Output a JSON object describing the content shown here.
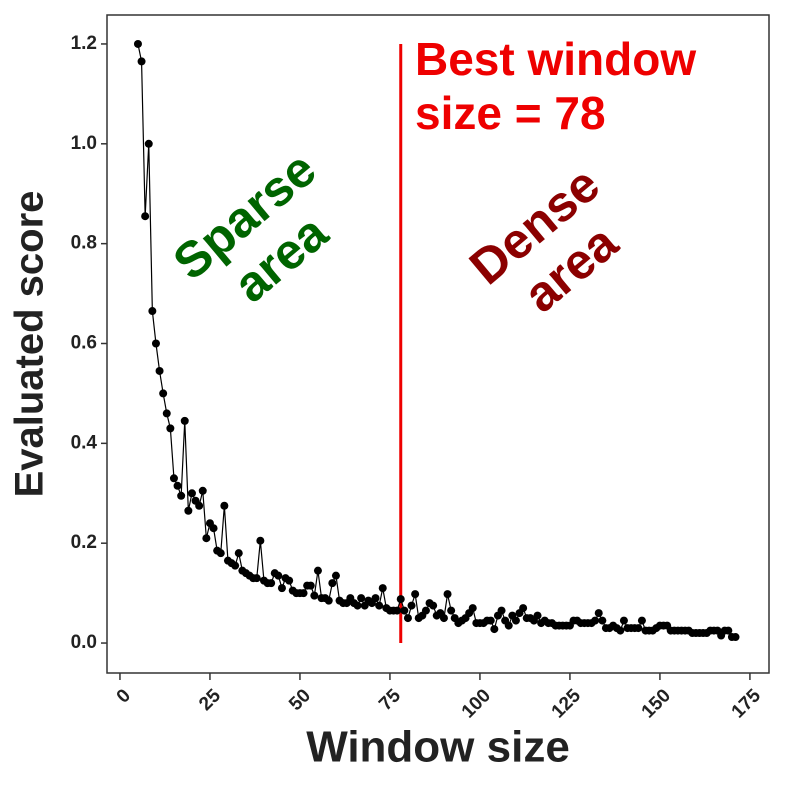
{
  "chart_data": {
    "type": "line",
    "x_label": "Window size",
    "y_label": "Evaluated score",
    "x": [
      5,
      6,
      7,
      8,
      9,
      10,
      11,
      12,
      13,
      14,
      15,
      16,
      17,
      18,
      19,
      20,
      21,
      22,
      23,
      24,
      25,
      26,
      27,
      28,
      29,
      30,
      31,
      32,
      33,
      34,
      35,
      36,
      37,
      38,
      39,
      40,
      41,
      42,
      43,
      44,
      45,
      46,
      47,
      48,
      49,
      50,
      51,
      52,
      53,
      54,
      55,
      56,
      57,
      58,
      59,
      60,
      61,
      62,
      63,
      64,
      65,
      66,
      67,
      68,
      69,
      70,
      71,
      72,
      73,
      74,
      75,
      76,
      77,
      78,
      79,
      80,
      81,
      82,
      83,
      84,
      85,
      86,
      87,
      88,
      89,
      90,
      91,
      92,
      93,
      94,
      95,
      96,
      97,
      98,
      99,
      100,
      101,
      102,
      103,
      104,
      105,
      106,
      107,
      108,
      109,
      110,
      111,
      112,
      113,
      114,
      115,
      116,
      117,
      118,
      119,
      120,
      121,
      122,
      123,
      124,
      125,
      126,
      127,
      128,
      129,
      130,
      131,
      132,
      133,
      134,
      135,
      136,
      137,
      138,
      139,
      140,
      141,
      142,
      143,
      144,
      145,
      146,
      147,
      148,
      149,
      150,
      151,
      152,
      153,
      154,
      155,
      156,
      157,
      158,
      159,
      160,
      161,
      162,
      163,
      164,
      165,
      166,
      167,
      168,
      169,
      170,
      171
    ],
    "series": [
      {
        "name": "score",
        "color": "#000000",
        "values": [
          1.2,
          1.165,
          0.855,
          1.0,
          0.665,
          0.6,
          0.545,
          0.5,
          0.46,
          0.43,
          0.33,
          0.315,
          0.295,
          0.445,
          0.265,
          0.3,
          0.285,
          0.275,
          0.305,
          0.21,
          0.24,
          0.23,
          0.185,
          0.18,
          0.275,
          0.165,
          0.16,
          0.155,
          0.18,
          0.145,
          0.14,
          0.135,
          0.13,
          0.13,
          0.205,
          0.125,
          0.12,
          0.12,
          0.14,
          0.135,
          0.11,
          0.13,
          0.125,
          0.105,
          0.1,
          0.1,
          0.1,
          0.115,
          0.115,
          0.095,
          0.145,
          0.09,
          0.09,
          0.085,
          0.12,
          0.135,
          0.085,
          0.08,
          0.08,
          0.09,
          0.08,
          0.075,
          0.09,
          0.075,
          0.085,
          0.08,
          0.09,
          0.075,
          0.11,
          0.07,
          0.065,
          0.065,
          0.065,
          0.088,
          0.065,
          0.05,
          0.075,
          0.098,
          0.05,
          0.055,
          0.065,
          0.08,
          0.075,
          0.055,
          0.06,
          0.05,
          0.098,
          0.065,
          0.05,
          0.04,
          0.045,
          0.05,
          0.06,
          0.07,
          0.04,
          0.04,
          0.04,
          0.045,
          0.045,
          0.028,
          0.055,
          0.065,
          0.045,
          0.035,
          0.055,
          0.045,
          0.06,
          0.07,
          0.05,
          0.05,
          0.045,
          0.055,
          0.04,
          0.045,
          0.04,
          0.04,
          0.035,
          0.035,
          0.035,
          0.035,
          0.035,
          0.045,
          0.045,
          0.04,
          0.04,
          0.04,
          0.04,
          0.045,
          0.06,
          0.045,
          0.03,
          0.03,
          0.035,
          0.03,
          0.025,
          0.045,
          0.03,
          0.03,
          0.03,
          0.03,
          0.045,
          0.025,
          0.025,
          0.025,
          0.03,
          0.035,
          0.035,
          0.035,
          0.025,
          0.025,
          0.025,
          0.025,
          0.025,
          0.025,
          0.02,
          0.02,
          0.02,
          0.02,
          0.02,
          0.025,
          0.025,
          0.025,
          0.015,
          0.025,
          0.025,
          0.012,
          0.012
        ]
      }
    ],
    "xlim": [
      -3.6,
      180.3
    ],
    "ylim": [
      -0.06,
      1.258
    ],
    "xticks": [
      0,
      25,
      50,
      75,
      100,
      125,
      150,
      175
    ],
    "yticks": [
      {
        "value": 0,
        "label": "0.0"
      },
      0.2,
      0.4,
      0.6,
      0.8,
      {
        "value": 1,
        "label": "1.0"
      },
      1.2
    ],
    "vline": {
      "x": 78,
      "y": [
        0,
        1.2
      ],
      "color": "#ee0000"
    },
    "annotations": [
      {
        "lines": [
          "Best window",
          "size = 78"
        ],
        "color": "#ee0000"
      },
      {
        "lines": [
          "Sparse",
          "area"
        ],
        "color": "#006400"
      },
      {
        "lines": [
          "Dense",
          "area"
        ],
        "color": "#8b0000"
      }
    ]
  }
}
